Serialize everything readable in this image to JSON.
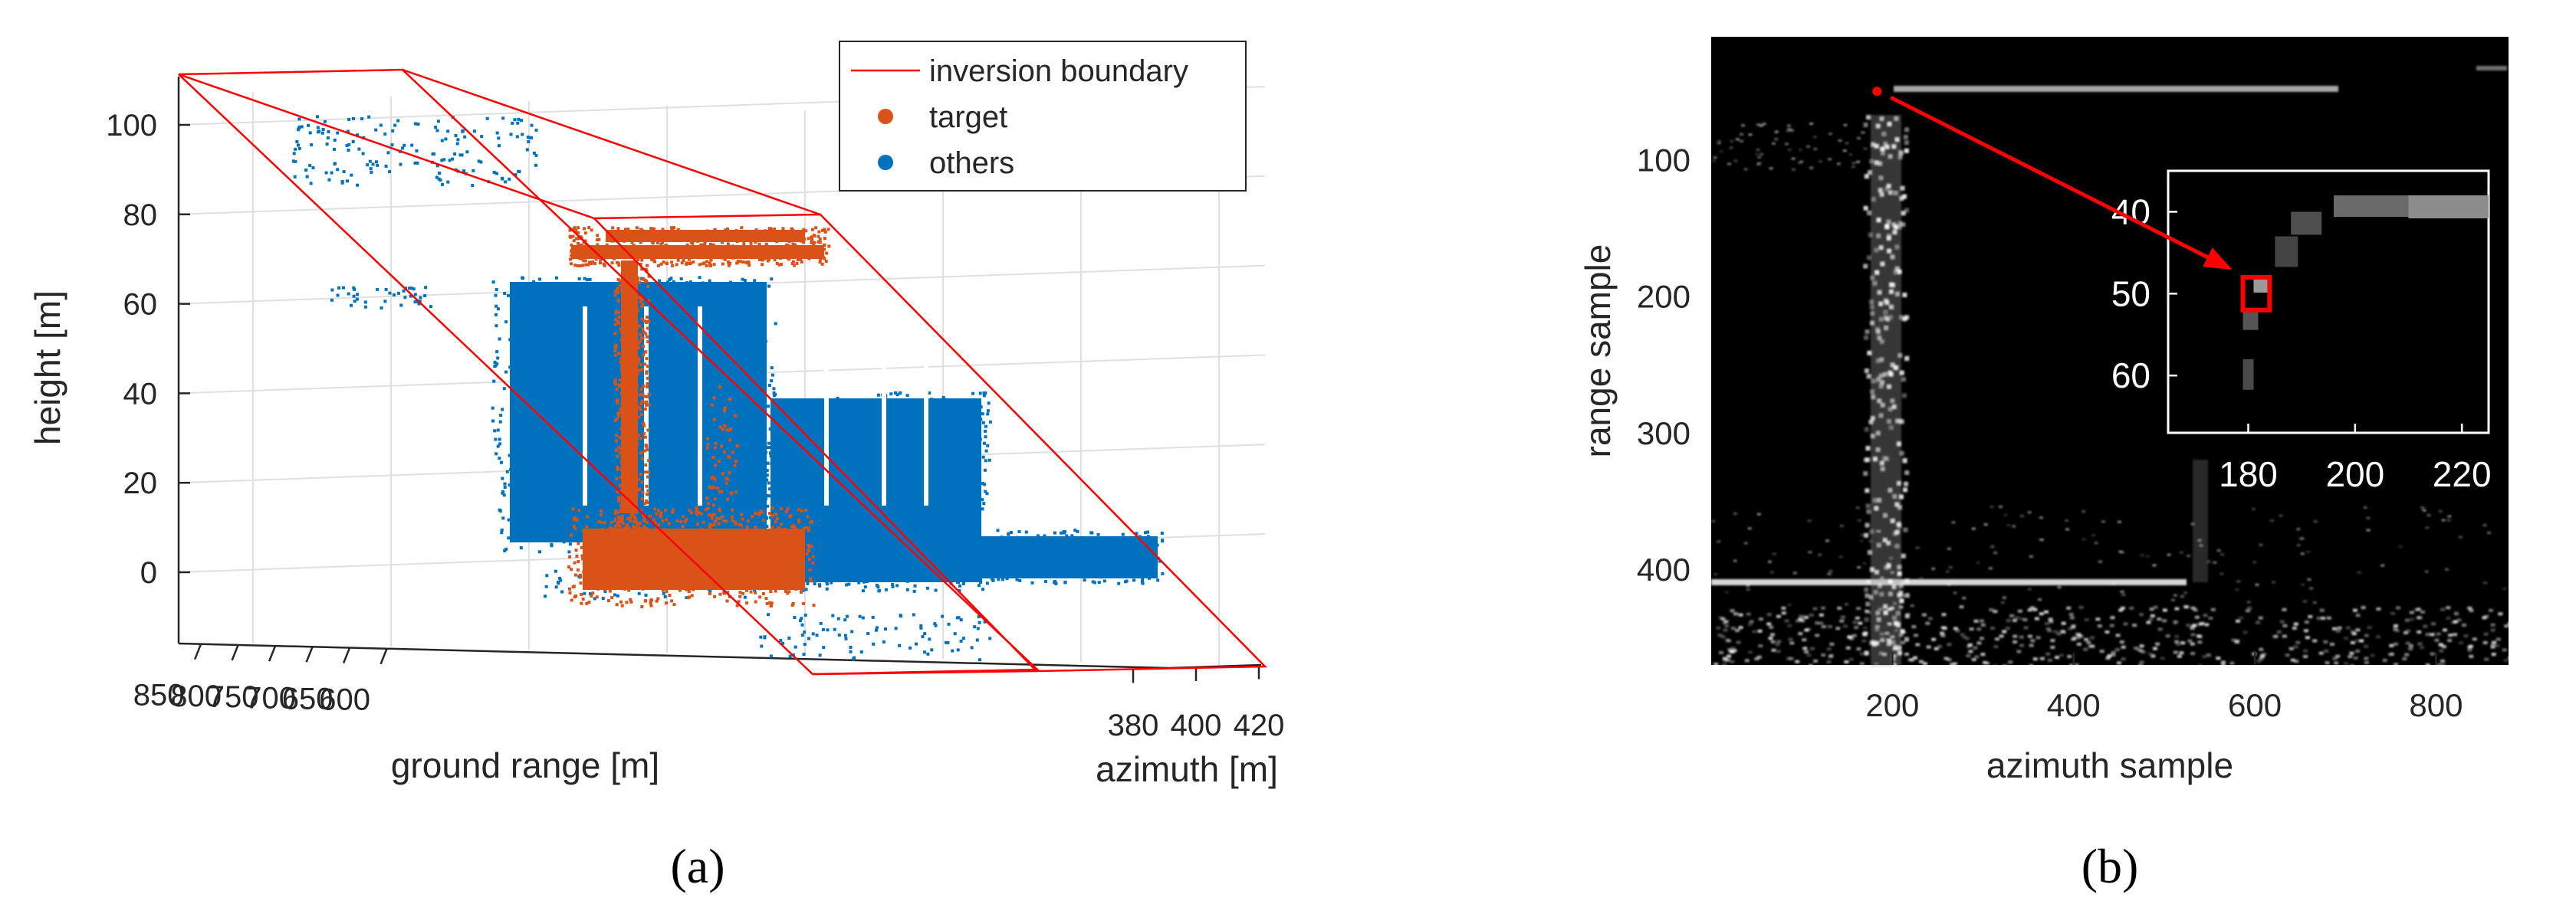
{
  "figure": {
    "panel_a_label": "(a)",
    "panel_b_label": "(b)"
  },
  "chart_data": [
    {
      "type": "scatter",
      "title": "",
      "xlabel": "ground range [m]",
      "ylabel": "azimuth [m]",
      "zlabel": "height [m]",
      "x_ticks": [
        "850",
        "800",
        "750",
        "700",
        "650",
        "600"
      ],
      "y_ticks": [
        "380",
        "400",
        "420"
      ],
      "z_ticks": [
        "0",
        "20",
        "40",
        "60",
        "80",
        "100"
      ],
      "xlim": [
        575,
        880
      ],
      "ylim": [
        370,
        425
      ],
      "zlim": [
        -15,
        110
      ],
      "grid": true,
      "legend_position": "top-right",
      "series": [
        {
          "name": "inversion boundary",
          "color": "#ff0000",
          "kind": "line"
        },
        {
          "name": "target",
          "color": "#d95319",
          "kind": "points"
        },
        {
          "name": "others",
          "color": "#0072bd",
          "kind": "points"
        }
      ]
    },
    {
      "type": "heatmap",
      "title": "",
      "xlabel": "azimuth sample",
      "ylabel": "range sample",
      "x_ticks": [
        "200",
        "400",
        "600",
        "800"
      ],
      "y_ticks": [
        "100",
        "200",
        "300",
        "400"
      ],
      "xlim": [
        0,
        880
      ],
      "ylim": [
        470,
        10
      ],
      "colormap": "gray",
      "marked_point": {
        "azimuth": 183,
        "range": 50,
        "color": "#ff0000"
      },
      "inset": {
        "x_ticks": [
          "180",
          "200",
          "220"
        ],
        "y_ticks": [
          "40",
          "50",
          "60"
        ],
        "xlim": [
          165,
          225
        ],
        "ylim": [
          67,
          35
        ],
        "highlight": {
          "azimuth": [
            179,
            184
          ],
          "range": [
            48,
            52
          ],
          "color": "#ff0000"
        }
      }
    }
  ]
}
